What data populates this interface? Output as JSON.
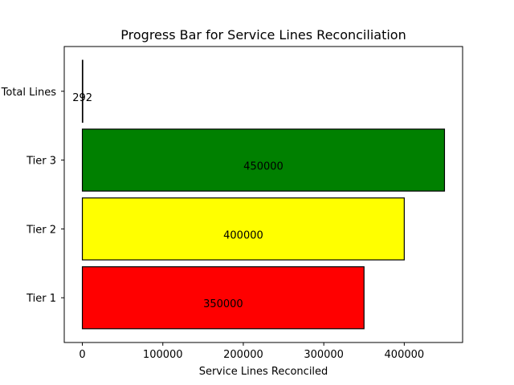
{
  "chart_data": {
    "type": "bar",
    "orientation": "horizontal",
    "title": "Progress Bar for Service Lines Reconciliation",
    "xlabel": "Service Lines Reconciled",
    "ylabel": "",
    "categories": [
      "Tier 1",
      "Tier 2",
      "Tier 3",
      "Total Lines"
    ],
    "values": [
      350000,
      400000,
      450000,
      292
    ],
    "data_labels": [
      "350000",
      "400000",
      "450000",
      "292"
    ],
    "colors": [
      "#ff0000",
      "#ffff00",
      "#008000",
      "#ffffff"
    ],
    "xlim": [
      -22500,
      472500
    ],
    "xticks": [
      0,
      100000,
      200000,
      300000,
      400000
    ],
    "xtick_labels": [
      "0",
      "100000",
      "200000",
      "300000",
      "400000"
    ],
    "grid": false,
    "legend": "none"
  }
}
